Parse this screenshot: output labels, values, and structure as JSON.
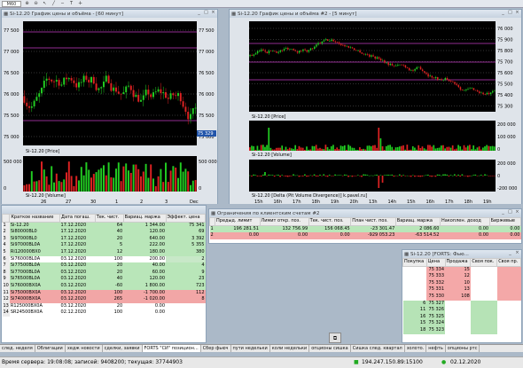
{
  "toolbar": {
    "symbol": "M60"
  },
  "win1": {
    "title": "Si-12.20 График цены и объёма - [60 минут]",
    "price_ticks": [
      "77 500",
      "77 000",
      "76 500",
      "76 000",
      "75 500",
      "75 000"
    ],
    "price_legend": "Si-12.20 [Price]",
    "vol_ticks": [
      "500 000",
      "0"
    ],
    "vol_legend": "Si-12.20 [Volume]",
    "x_labels": [
      "26",
      "27",
      "30",
      "1",
      "2",
      "3",
      "Dec"
    ],
    "last_price": "75 329"
  },
  "win2": {
    "title": "Si-12.20 График цены и объёма #2 - [5 минут]",
    "price_ticks": [
      "76 000",
      "75 900",
      "75 800",
      "75 700",
      "75 600",
      "75 500",
      "75 400",
      "75 300"
    ],
    "price_legend": "Si-12.20 [Price]",
    "vol_ticks": [
      "200 000",
      "100 000",
      "0"
    ],
    "vol_legend": "Si-12.20 [Volume]",
    "pvd_ticks": [
      "200 000",
      "0",
      "-200 000"
    ],
    "pvd_legend": "Si-12.20 [Delta (Pit Volume Divergence)] k.pavel.ru]",
    "x_labels": [
      "15h",
      "16h",
      "17h",
      "18h",
      "19h",
      "20h",
      "13h",
      "14h",
      "15h",
      "16h",
      "17h",
      "18h",
      "19h"
    ]
  },
  "quotes": {
    "headers": [
      "Краткое название",
      "Дата погаш.",
      "Тек. чист.",
      "Вариац. маржа",
      "Эффект. цена"
    ],
    "rows": [
      {
        "n": "1",
        "name": "Si-12.20",
        "date": "17.12.2020",
        "pos": "64",
        "var": "1 344.00",
        "eff": "75 341",
        "c": "green"
      },
      {
        "n": "2",
        "name": "Si80000BL0",
        "date": "17.12.2020",
        "pos": "40",
        "var": "120.00",
        "eff": "69",
        "c": "green"
      },
      {
        "n": "3",
        "name": "Si97000BL0",
        "date": "17.12.2020",
        "pos": "20",
        "var": "640.00",
        "eff": "3 392",
        "c": "green"
      },
      {
        "n": "4",
        "name": "Si97000BL0A",
        "date": "17.12.2020",
        "pos": "5",
        "var": "222.00",
        "eff": "5 355",
        "c": "green"
      },
      {
        "n": "5",
        "name": "Ri120000BX0",
        "date": "17.12.2020",
        "pos": "12",
        "var": "180.00",
        "eff": "380",
        "c": "green"
      },
      {
        "n": "6",
        "name": "Si76000BL0A",
        "date": "03.12.2020",
        "pos": "100",
        "var": "200.00",
        "eff": "2",
        "c": "sel"
      },
      {
        "n": "7",
        "name": "Si77500BL0A",
        "date": "03.12.2020",
        "pos": "20",
        "var": "40.00",
        "eff": "4",
        "c": "green"
      },
      {
        "n": "8",
        "name": "Si77000BL0A",
        "date": "03.12.2020",
        "pos": "20",
        "var": "60.00",
        "eff": "9",
        "c": "green"
      },
      {
        "n": "9",
        "name": "Si76500BL0A",
        "date": "03.12.2020",
        "pos": "40",
        "var": "120.00",
        "eff": "23",
        "c": "green"
      },
      {
        "n": "10",
        "name": "Si76000BX0A",
        "date": "03.12.2020",
        "pos": "-60",
        "var": "1 800.00",
        "eff": "723",
        "c": "green"
      },
      {
        "n": "11",
        "name": "Si75000BX0A",
        "date": "03.12.2020",
        "pos": "100",
        "var": "-1 700.00",
        "eff": "112",
        "c": "red"
      },
      {
        "n": "12",
        "name": "Si74000BX0A",
        "date": "03.12.2020",
        "pos": "265",
        "var": "-1 020.00",
        "eff": "8",
        "c": "red"
      },
      {
        "n": "13",
        "name": "R125000BX0A",
        "date": "03.12.2020",
        "pos": "20",
        "var": "0.00",
        "eff": "",
        "c": ""
      },
      {
        "n": "14",
        "name": "SR24500BX0A",
        "date": "02.12.2020",
        "pos": "100",
        "var": "0.00",
        "eff": "",
        "c": ""
      }
    ]
  },
  "limits": {
    "title": "Ограничения по клиентским счетам #2",
    "headers": [
      "Предыд. лимит",
      "Лимит откр. поз.",
      "Тек. чист. поз.",
      "План чист. поз.",
      "Вариац. маржа",
      "Накоплен. доход",
      "Биржевые"
    ],
    "rows": [
      {
        "n": "1",
        "a": "196 281.51",
        "b": "132 756.99",
        "c": "156 068.45",
        "d": "-23 301.47",
        "e": "2 086.60",
        "f": "0.00",
        "g": "0.00",
        "cls": "green"
      },
      {
        "n": "2",
        "a": "0.00",
        "b": "0.00",
        "c": "0.00",
        "d": "-929 053.23",
        "e": "-63 514.52",
        "f": "0.00",
        "g": "0.00",
        "cls": "red"
      }
    ]
  },
  "orderbook": {
    "title": "Si-12.20 [FORTS: Фью...",
    "headers": [
      "Покупка",
      "Цена",
      "Продажа",
      "Своя пок.",
      "Своя пр."
    ],
    "rows": [
      {
        "buy": "",
        "price": "75 334",
        "sell": "15",
        "side": "sell"
      },
      {
        "buy": "",
        "price": "75 333",
        "sell": "12",
        "side": "sell"
      },
      {
        "buy": "",
        "price": "75 332",
        "sell": "10",
        "side": "sell"
      },
      {
        "buy": "",
        "price": "75 331",
        "sell": "13",
        "side": "sell"
      },
      {
        "buy": "",
        "price": "75 330",
        "sell": "108",
        "side": "sell"
      },
      {
        "buy": "6",
        "price": "75 327",
        "sell": "",
        "side": "buy"
      },
      {
        "buy": "11",
        "price": "75 326",
        "sell": "",
        "side": "buy"
      },
      {
        "buy": "16",
        "price": "75 325",
        "sell": "",
        "side": "buy"
      },
      {
        "buy": "15",
        "price": "75 324",
        "sell": "",
        "side": "buy"
      },
      {
        "buy": "18",
        "price": "75 323",
        "sell": "",
        "side": "buy"
      }
    ]
  },
  "tabs": [
    "след. неделя",
    "Облигации",
    "хедж новости",
    "сделки, заявки",
    "FORTS \"СИ\" позицион...",
    "Сбер фьюч",
    "пути недельки",
    "коли недельки",
    "опционы сишка",
    "Сишка след. квартал",
    "золото.",
    "нефть",
    "опционы ртс"
  ],
  "status": {
    "server_time": "Время сервера: 19:08:08; записей: 9408200; текущая: 37744903",
    "ip": "194.247.150.89:15100",
    "date": "02.12.2020"
  },
  "colors": {
    "up": "#22cc22",
    "down": "#dd2222",
    "grid": "#3a3a3a",
    "bg": "#000000"
  }
}
